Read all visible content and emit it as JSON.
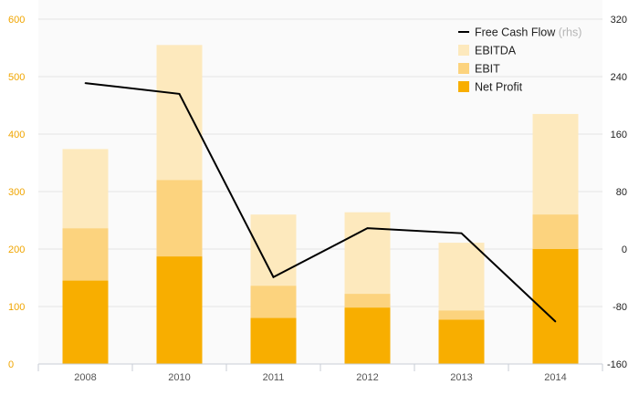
{
  "chart_data": {
    "type": "bar",
    "stacked": false,
    "overlapping_bars": true,
    "categories": [
      "2008",
      "2010",
      "2011",
      "2012",
      "2013",
      "2014"
    ],
    "series": [
      {
        "name": "EBITDA",
        "type": "bar",
        "axis": "left",
        "color": "#fde9bd",
        "values": [
          374,
          555,
          260,
          264,
          211,
          435
        ]
      },
      {
        "name": "EBIT",
        "type": "bar",
        "axis": "left",
        "color": "#fcd37e",
        "values": [
          236,
          320,
          136,
          122,
          93,
          260
        ]
      },
      {
        "name": "Net Profit",
        "type": "bar",
        "axis": "left",
        "color": "#f8ae00",
        "values": [
          145,
          187,
          80,
          98,
          77,
          200
        ]
      },
      {
        "name": "Free Cash Flow",
        "name_suffix": "(rhs)",
        "type": "line",
        "axis": "right",
        "color": "#000000",
        "values": [
          231,
          216,
          -39,
          29,
          22,
          -101
        ]
      }
    ],
    "y_left": {
      "min": 0,
      "max": 600,
      "ticks": [
        "0",
        "100",
        "200",
        "300",
        "400",
        "500",
        "600"
      ],
      "color": "#f0a500"
    },
    "y_right": {
      "min": -160,
      "max": 320,
      "ticks": [
        "-160",
        "-80",
        "0",
        "80",
        "160",
        "240",
        "320"
      ],
      "color": "#222222"
    },
    "title": "",
    "xlabel": "",
    "ylabel": "",
    "grid": true,
    "legend_position": "top-right"
  }
}
